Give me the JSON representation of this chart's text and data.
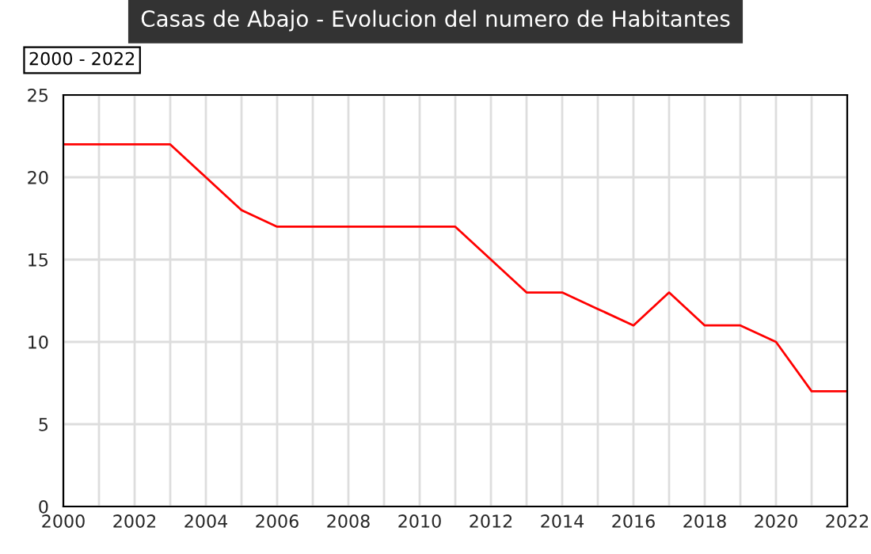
{
  "chart_data": {
    "type": "line",
    "title": "Casas de Abajo - Evolucion del numero de Habitantes",
    "annotations": [
      "2000 - 2022"
    ],
    "x": [
      2000,
      2001,
      2002,
      2003,
      2004,
      2005,
      2006,
      2007,
      2008,
      2009,
      2010,
      2011,
      2012,
      2013,
      2014,
      2015,
      2016,
      2017,
      2018,
      2019,
      2020,
      2021,
      2022
    ],
    "series": [
      {
        "color": "#ff0000",
        "values": [
          22,
          22,
          22,
          22,
          20,
          18,
          17,
          17,
          17,
          17,
          17,
          17,
          15,
          13,
          13,
          12,
          11,
          13,
          11,
          11,
          10,
          7,
          7
        ]
      }
    ],
    "xlim": [
      2000,
      2022
    ],
    "xticks": [
      2000,
      {
        "value": 2001,
        "label": null
      },
      2002,
      {
        "value": 2003,
        "label": null
      },
      2004,
      {
        "value": 2005,
        "label": null
      },
      2006,
      {
        "value": 2007,
        "label": null
      },
      2008,
      {
        "value": 2009,
        "label": null
      },
      2010,
      {
        "value": 2011,
        "label": null
      },
      2012,
      {
        "value": 2013,
        "label": null
      },
      2014,
      {
        "value": 2015,
        "label": null
      },
      2016,
      {
        "value": 2017,
        "label": null
      },
      2018,
      {
        "value": 2019,
        "label": null
      },
      2020,
      {
        "value": 2021,
        "label": null
      },
      2022
    ],
    "ylim": [
      0,
      25
    ],
    "yticks": [
      0,
      5,
      10,
      15,
      20,
      25
    ],
    "grid": true,
    "marker": "none",
    "line_style": "solid"
  }
}
